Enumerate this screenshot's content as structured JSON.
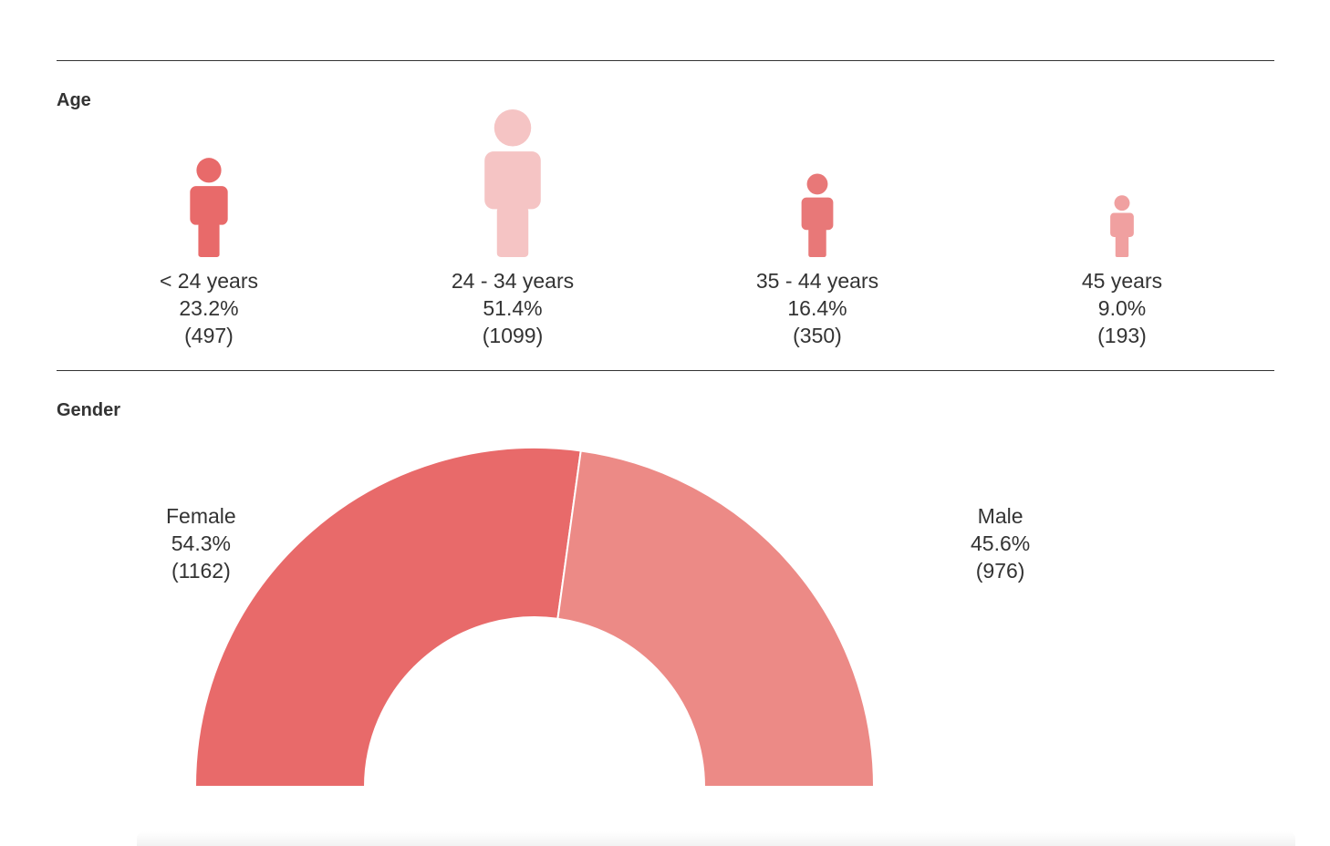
{
  "sections": {
    "age_title": "Age",
    "gender_title": "Gender"
  },
  "chart_data": [
    {
      "type": "pictogram",
      "title": "Age",
      "categories": [
        "< 24 years",
        "24 - 34 years",
        "35 - 44 years",
        "45 years"
      ],
      "percent_labels": [
        "23.2%",
        "51.4%",
        "16.4%",
        "9.0%"
      ],
      "count_labels": [
        "(497)",
        "(1099)",
        "(350)",
        "(193)"
      ],
      "values": [
        23.2,
        51.4,
        16.4,
        9.0
      ],
      "counts": [
        497,
        1099,
        350,
        193
      ],
      "colors": [
        "#e86a6a",
        "#f5c4c4",
        "#e87878",
        "#f0a0a0"
      ]
    },
    {
      "type": "pie",
      "variant": "half-donut",
      "title": "Gender",
      "categories": [
        "Female",
        "Male"
      ],
      "percent_labels": [
        "54.3%",
        "45.6%"
      ],
      "count_labels": [
        "(1162)",
        "(976)"
      ],
      "values": [
        54.3,
        45.6
      ],
      "counts": [
        1162,
        976
      ],
      "colors": [
        "#e86a6a",
        "#ec8a86"
      ]
    }
  ]
}
